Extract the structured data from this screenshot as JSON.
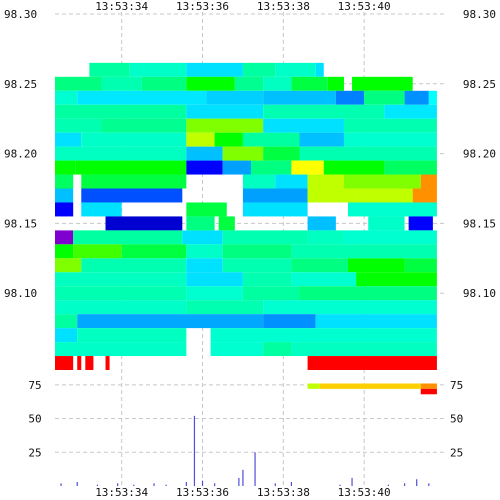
{
  "chart_data": [
    {
      "type": "heatmap",
      "title": "",
      "xlabel": "",
      "ylabel": "",
      "x_ticks": [
        "13:53:34",
        "13:53:36",
        "13:53:38",
        "13:53:40"
      ],
      "x_tick_seconds": [
        34,
        36,
        38,
        40
      ],
      "xlim_seconds": [
        32.35,
        42.0
      ],
      "y_ticks": [
        98.3,
        98.25,
        98.2,
        98.15,
        98.1
      ],
      "ylim": [
        98.045,
        98.3
      ],
      "grid": true,
      "colorscale": [
        "#8000d0",
        "#0000ff",
        "#0090ff",
        "#00e0ff",
        "#00ffa0",
        "#00ff00",
        "#c0ff00",
        "#ffff00",
        "#ff9000",
        "#ff0000"
      ],
      "bands": [
        {
          "y_from": 98.255,
          "y_to": 98.265,
          "segments": [
            [
              33.2,
              34.2,
              "#00ffa0"
            ],
            [
              34.2,
              35.6,
              "#00ffc8"
            ],
            [
              35.6,
              37.0,
              "#00e0ff"
            ],
            [
              37.0,
              37.8,
              "#00ffa0"
            ],
            [
              37.8,
              38.8,
              "#00ffc8"
            ],
            [
              38.8,
              39.0,
              "#00e0ff"
            ]
          ]
        },
        {
          "y_from": 98.245,
          "y_to": 98.255,
          "segments": [
            [
              32.35,
              33.5,
              "#00ff80"
            ],
            [
              33.5,
              34.5,
              "#00ffb0"
            ],
            [
              34.5,
              35.6,
              "#00ff80"
            ],
            [
              35.6,
              36.8,
              "#00ff00"
            ],
            [
              36.8,
              37.5,
              "#00ff90"
            ],
            [
              37.5,
              38.2,
              "#00ffc0"
            ],
            [
              38.2,
              39.1,
              "#00ff40"
            ],
            [
              39.1,
              39.5,
              "#00ff00"
            ],
            [
              39.7,
              41.2,
              "#00ff00"
            ]
          ]
        },
        {
          "y_from": 98.235,
          "y_to": 98.245,
          "segments": [
            [
              32.35,
              32.9,
              "#00ffd0"
            ],
            [
              32.9,
              36.1,
              "#00e8ff"
            ],
            [
              36.1,
              37.5,
              "#00d0ff"
            ],
            [
              37.5,
              39.3,
              "#00c0ff"
            ],
            [
              39.3,
              40.0,
              "#0080ff"
            ],
            [
              40.0,
              41.0,
              "#00ff80"
            ],
            [
              41.0,
              41.6,
              "#0090ff"
            ],
            [
              41.6,
              41.8,
              "#00ffff"
            ]
          ]
        },
        {
          "y_from": 98.225,
          "y_to": 98.235,
          "segments": [
            [
              32.35,
              35.6,
              "#00ffa0"
            ],
            [
              35.6,
              37.5,
              "#00e0ff"
            ],
            [
              37.5,
              40.5,
              "#00ffb0"
            ],
            [
              40.5,
              41.8,
              "#00e8ff"
            ]
          ]
        },
        {
          "y_from": 98.215,
          "y_to": 98.225,
          "segments": [
            [
              32.35,
              33.5,
              "#00ffb0"
            ],
            [
              33.5,
              35.6,
              "#00ff90"
            ],
            [
              35.6,
              37.5,
              "#80ff00"
            ],
            [
              37.5,
              39.5,
              "#00e0ff"
            ],
            [
              39.5,
              41.8,
              "#00ffb0"
            ]
          ]
        },
        {
          "y_from": 98.205,
          "y_to": 98.215,
          "segments": [
            [
              32.35,
              33.0,
              "#00e0ff"
            ],
            [
              33.0,
              35.6,
              "#00ffc8"
            ],
            [
              35.6,
              36.3,
              "#c0ff00"
            ],
            [
              36.3,
              37.0,
              "#00ff00"
            ],
            [
              37.0,
              38.4,
              "#00ffa0"
            ],
            [
              38.4,
              39.5,
              "#00c0ff"
            ],
            [
              39.5,
              41.8,
              "#00ffd0"
            ]
          ]
        },
        {
          "y_from": 98.195,
          "y_to": 98.205,
          "segments": [
            [
              32.35,
              35.6,
              "#00ffc0"
            ],
            [
              35.6,
              36.5,
              "#00c0ff"
            ],
            [
              36.5,
              37.5,
              "#80ff00"
            ],
            [
              37.5,
              38.4,
              "#00ff40"
            ],
            [
              38.4,
              41.8,
              "#00ffb0"
            ]
          ]
        },
        {
          "y_from": 98.185,
          "y_to": 98.195,
          "segments": [
            [
              32.35,
              32.85,
              "#00ff00"
            ],
            [
              32.85,
              35.6,
              "#00ff00"
            ],
            [
              35.6,
              36.5,
              "#0000ff"
            ],
            [
              36.5,
              37.2,
              "#00a0ff"
            ],
            [
              37.2,
              38.2,
              "#00ff80"
            ],
            [
              38.2,
              39.0,
              "#ffff00"
            ],
            [
              39.0,
              40.5,
              "#00ff00"
            ],
            [
              40.5,
              41.8,
              "#00ff60"
            ]
          ]
        },
        {
          "y_from": 98.175,
          "y_to": 98.185,
          "segments": [
            [
              32.35,
              32.8,
              "#00ff60"
            ],
            [
              33.0,
              35.6,
              "#00ff40"
            ],
            [
              37.0,
              37.8,
              "#00ffc0"
            ],
            [
              37.8,
              38.6,
              "#00e0ff"
            ],
            [
              38.6,
              39.5,
              "#c0ff00"
            ],
            [
              39.5,
              41.4,
              "#80ff00"
            ],
            [
              41.4,
              41.8,
              "#ff9000"
            ]
          ]
        },
        {
          "y_from": 98.165,
          "y_to": 98.175,
          "segments": [
            [
              32.35,
              32.8,
              "#00c0ff"
            ],
            [
              33.0,
              35.5,
              "#0050ff"
            ],
            [
              37.0,
              38.6,
              "#00a0ff"
            ],
            [
              38.6,
              39.8,
              "#c0ff00"
            ],
            [
              39.8,
              41.2,
              "#c0ff00"
            ],
            [
              41.2,
              41.8,
              "#ff9000"
            ]
          ]
        },
        {
          "y_from": 98.155,
          "y_to": 98.165,
          "segments": [
            [
              32.35,
              32.8,
              "#0000ff"
            ],
            [
              33.0,
              34.0,
              "#00e0ff"
            ],
            [
              35.6,
              36.6,
              "#00ff40"
            ],
            [
              37.0,
              38.6,
              "#00e0ff"
            ],
            [
              39.6,
              41.8,
              "#00ffd0"
            ]
          ]
        },
        {
          "y_from": 98.145,
          "y_to": 98.155,
          "segments": [
            [
              33.6,
              35.5,
              "#0000d0"
            ],
            [
              35.6,
              36.3,
              "#00ff80"
            ],
            [
              36.4,
              36.8,
              "#00ff40"
            ],
            [
              38.6,
              39.3,
              "#00c0ff"
            ],
            [
              40.1,
              41.0,
              "#00ffc8"
            ],
            [
              41.1,
              41.7,
              "#0000ff"
            ]
          ]
        },
        {
          "y_from": 98.135,
          "y_to": 98.145,
          "segments": [
            [
              32.35,
              32.8,
              "#8000d0"
            ],
            [
              32.8,
              35.5,
              "#00ffa0"
            ],
            [
              35.5,
              36.5,
              "#00e0ff"
            ],
            [
              36.5,
              38.6,
              "#00ffb0"
            ],
            [
              38.6,
              39.5,
              "#00ffc0"
            ],
            [
              39.5,
              41.8,
              "#00ffd0"
            ]
          ]
        },
        {
          "y_from": 98.125,
          "y_to": 98.135,
          "segments": [
            [
              32.35,
              32.8,
              "#00ff00"
            ],
            [
              32.8,
              34.0,
              "#40ff00"
            ],
            [
              34.0,
              35.6,
              "#00ff40"
            ],
            [
              35.6,
              36.5,
              "#00ffc8"
            ],
            [
              36.5,
              38.2,
              "#00ff80"
            ],
            [
              38.2,
              41.8,
              "#00ffb0"
            ]
          ]
        },
        {
          "y_from": 98.115,
          "y_to": 98.125,
          "segments": [
            [
              32.35,
              33.0,
              "#80ff00"
            ],
            [
              33.0,
              35.6,
              "#00ffb0"
            ],
            [
              35.6,
              36.5,
              "#00e0ff"
            ],
            [
              36.5,
              38.2,
              "#00ffb0"
            ],
            [
              38.2,
              39.6,
              "#00ff80"
            ],
            [
              39.6,
              41.0,
              "#00ff00"
            ],
            [
              41.0,
              41.8,
              "#00ff40"
            ]
          ]
        },
        {
          "y_from": 98.105,
          "y_to": 98.115,
          "segments": [
            [
              32.35,
              35.6,
              "#00ffc0"
            ],
            [
              35.6,
              37.0,
              "#00e0ff"
            ],
            [
              37.0,
              38.2,
              "#00ffb0"
            ],
            [
              38.2,
              39.8,
              "#00ffd0"
            ],
            [
              39.8,
              41.8,
              "#00ff00"
            ]
          ]
        },
        {
          "y_from": 98.095,
          "y_to": 98.105,
          "segments": [
            [
              32.35,
              35.6,
              "#00ffb0"
            ],
            [
              35.6,
              37.0,
              "#00ffd0"
            ],
            [
              37.0,
              38.4,
              "#00ffa0"
            ],
            [
              38.4,
              41.8,
              "#00ff80"
            ]
          ]
        },
        {
          "y_from": 98.085,
          "y_to": 98.095,
          "segments": [
            [
              32.35,
              35.6,
              "#00ffc8"
            ],
            [
              35.6,
              37.5,
              "#00ffb0"
            ],
            [
              37.5,
              41.8,
              "#00ffd0"
            ]
          ]
        },
        {
          "y_from": 98.075,
          "y_to": 98.085,
          "segments": [
            [
              32.35,
              32.9,
              "#00ffa0"
            ],
            [
              32.9,
              37.5,
              "#00a8ff"
            ],
            [
              37.5,
              38.8,
              "#0090ff"
            ],
            [
              38.8,
              41.8,
              "#00e0ff"
            ]
          ]
        },
        {
          "y_from": 98.065,
          "y_to": 98.075,
          "segments": [
            [
              32.35,
              32.9,
              "#00e0ff"
            ],
            [
              32.9,
              35.6,
              "#00ffc0"
            ],
            [
              36.2,
              41.8,
              "#00ffd0"
            ]
          ]
        },
        {
          "y_from": 98.055,
          "y_to": 98.065,
          "segments": [
            [
              32.35,
              35.6,
              "#00ffc8"
            ],
            [
              36.2,
              37.5,
              "#00ffd0"
            ],
            [
              37.5,
              38.2,
              "#00ffa0"
            ],
            [
              38.2,
              41.8,
              "#00ffc0"
            ]
          ]
        },
        {
          "y_from": 98.045,
          "y_to": 98.055,
          "segments": [
            [
              32.35,
              32.8,
              "#ff0000"
            ],
            [
              32.9,
              33.0,
              "#ff0000"
            ],
            [
              33.1,
              33.3,
              "#ff0000"
            ],
            [
              33.6,
              33.7,
              "#ff0000"
            ],
            [
              38.6,
              41.8,
              "#ff0000"
            ]
          ]
        }
      ]
    },
    {
      "type": "bar",
      "title": "",
      "xlabel": "",
      "ylabel": "",
      "y_ticks": [
        25,
        50,
        75
      ],
      "ylim": [
        0,
        86
      ],
      "xlim_seconds": [
        32.35,
        42.0
      ],
      "grid": true,
      "top_band": [
        {
          "x_from": 38.6,
          "x_to": 38.9,
          "y_from": 72,
          "y_to": 76,
          "color": "#c0ff00"
        },
        {
          "x_from": 38.9,
          "x_to": 41.4,
          "y_from": 72,
          "y_to": 76,
          "color": "#ffd000"
        },
        {
          "x_from": 41.4,
          "x_to": 41.8,
          "y_from": 72,
          "y_to": 76,
          "color": "#ff9000"
        },
        {
          "x_from": 41.4,
          "x_to": 41.8,
          "y_from": 68,
          "y_to": 72,
          "color": "#ff0000"
        }
      ],
      "x_seconds": [
        32.5,
        32.9,
        33.4,
        33.9,
        34.3,
        34.8,
        35.1,
        35.6,
        35.8,
        36.0,
        36.3,
        36.9,
        37.0,
        37.3,
        37.8,
        38.2,
        39.4,
        39.7,
        40.6,
        41.0,
        41.3,
        41.6
      ],
      "values": [
        2,
        3,
        1,
        2,
        1,
        2,
        1,
        3,
        52,
        4,
        2,
        6,
        12,
        25,
        2,
        3,
        1,
        6,
        1,
        2,
        5,
        2
      ]
    }
  ]
}
